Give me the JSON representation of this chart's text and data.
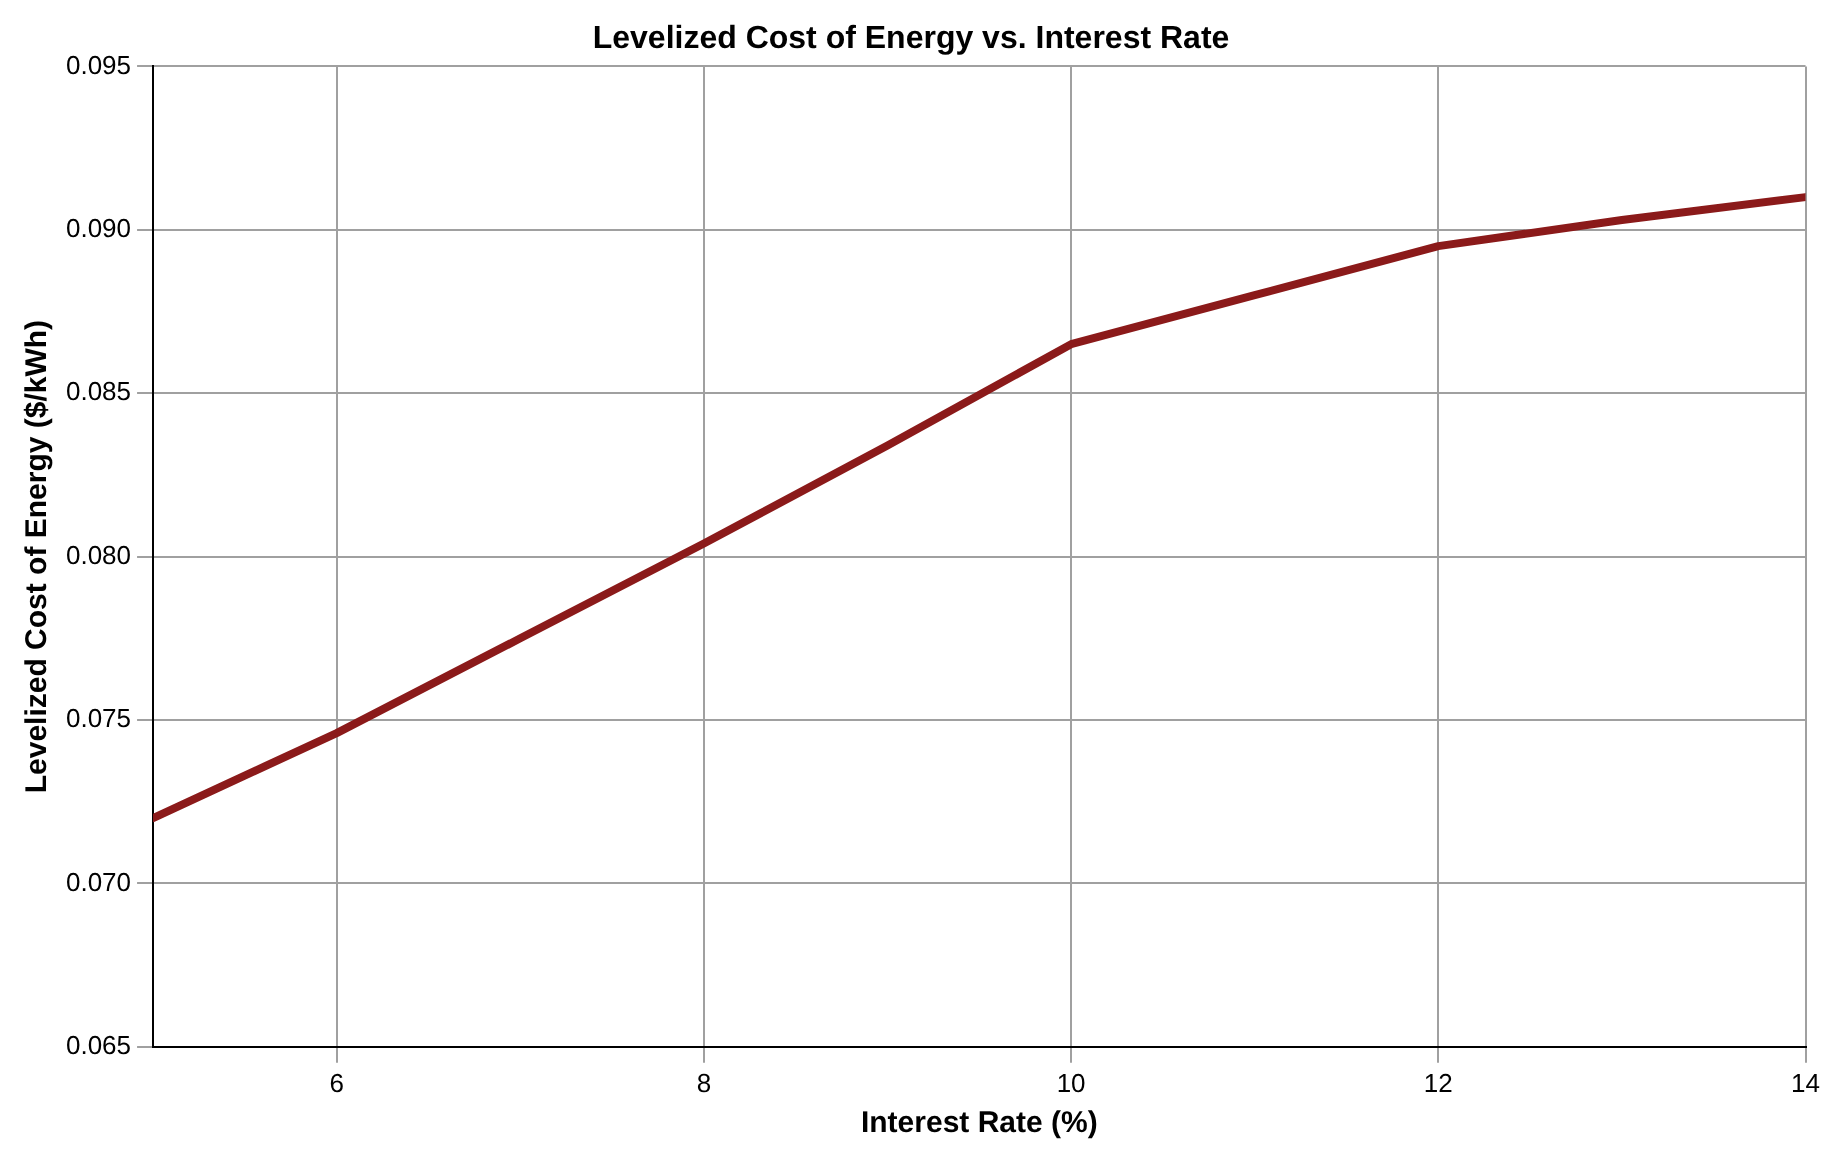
{
  "chart_data": {
    "type": "line",
    "title": "Levelized Cost of Energy vs. Interest Rate",
    "xlabel": "Interest Rate (%)",
    "ylabel": "Levelized Cost of Energy ($/kWh)",
    "x": [
      5,
      6,
      7,
      8,
      9,
      10,
      11,
      12,
      13,
      14
    ],
    "series": [
      {
        "color": "#8b1a1a",
        "values": [
          0.072,
          0.0746,
          0.0775,
          0.0804,
          0.0834,
          0.0865,
          0.088,
          0.0895,
          0.0903,
          0.091
        ]
      }
    ],
    "xlim": [
      5,
      14
    ],
    "xticks": [
      6,
      8,
      10,
      12,
      14
    ],
    "ylim": [
      0.065,
      0.095
    ],
    "yticks": [
      {
        "value": 0.065,
        "label": "0.065"
      },
      {
        "value": 0.07,
        "label": "0.070"
      },
      {
        "value": 0.075,
        "label": "0.075"
      },
      {
        "value": 0.08,
        "label": "0.080"
      },
      {
        "value": 0.085,
        "label": "0.085"
      },
      {
        "value": 0.09,
        "label": "0.090"
      },
      {
        "value": 0.095,
        "label": "0.095"
      }
    ],
    "grid": true,
    "legend": false,
    "marker": "none",
    "line_style": "solid"
  }
}
